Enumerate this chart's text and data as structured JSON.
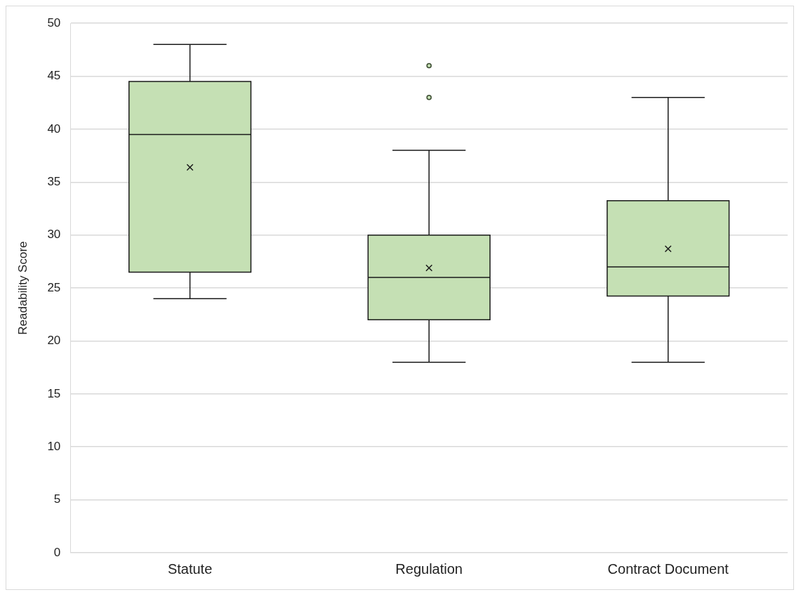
{
  "chart_data": {
    "type": "box",
    "ylabel": "Readability Score",
    "categories": [
      "Statute",
      "Regulation",
      "Contract Document"
    ],
    "color": "#c5e0b4",
    "boxes": [
      {
        "low": 24,
        "q1": 26.5,
        "median": 39.5,
        "q3": 44.5,
        "high": 48,
        "mean": 36.4
      },
      {
        "low": 18,
        "q1": 22,
        "median": 26,
        "q3": 30,
        "high": 38,
        "mean": 26.9,
        "outliers": [
          43,
          46
        ]
      },
      {
        "low": 18,
        "q1": 24.25,
        "median": 27,
        "q3": 33.25,
        "high": 43,
        "mean": 28.7
      }
    ],
    "ylim": [
      0,
      50
    ],
    "yticks": [
      0,
      5,
      10,
      15,
      20,
      25,
      30,
      35,
      40,
      45,
      50
    ],
    "grid": "y"
  }
}
